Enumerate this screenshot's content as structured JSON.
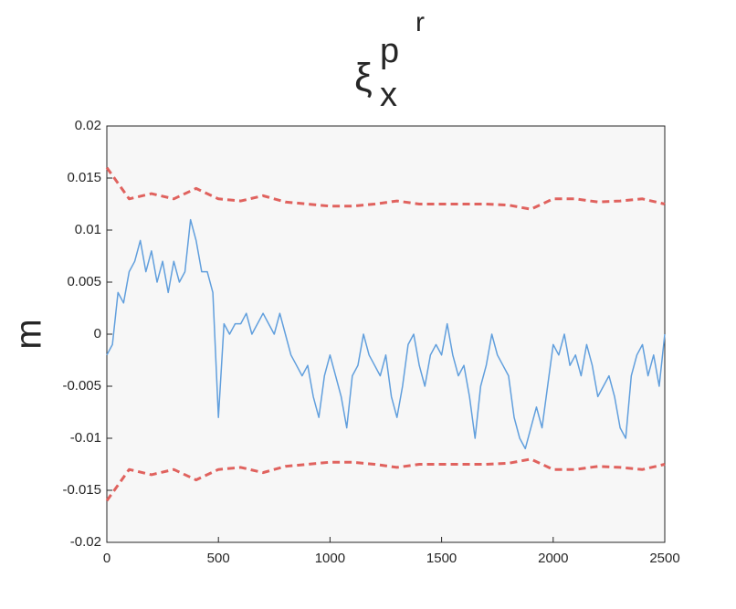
{
  "chart_data": {
    "type": "line",
    "title": {
      "symbol": "ξ",
      "subscript": "x",
      "superscript": "p",
      "superscript_superscript": "r"
    },
    "ylabel": "m",
    "xlim": [
      0,
      2500
    ],
    "xticks": [
      0,
      500,
      1000,
      1500,
      2000,
      2500
    ],
    "ylim": [
      -0.02,
      0.02
    ],
    "yticks": [
      -0.02,
      -0.015,
      -0.01,
      -0.005,
      0,
      0.005,
      0.01,
      0.015,
      0.02
    ],
    "grid": false,
    "series": [
      {
        "color": "#619fdd",
        "dashed": false,
        "x": [
          0,
          25,
          50,
          75,
          100,
          125,
          150,
          175,
          200,
          225,
          250,
          275,
          300,
          325,
          350,
          375,
          400,
          425,
          450,
          475,
          500,
          525,
          550,
          575,
          600,
          625,
          650,
          675,
          700,
          725,
          750,
          775,
          800,
          825,
          850,
          875,
          900,
          925,
          950,
          975,
          1000,
          1025,
          1050,
          1075,
          1100,
          1125,
          1150,
          1175,
          1200,
          1225,
          1250,
          1275,
          1300,
          1325,
          1350,
          1375,
          1400,
          1425,
          1450,
          1475,
          1500,
          1525,
          1550,
          1575,
          1600,
          1625,
          1650,
          1675,
          1700,
          1725,
          1750,
          1775,
          1800,
          1825,
          1850,
          1875,
          1900,
          1925,
          1950,
          1975,
          2000,
          2025,
          2050,
          2075,
          2100,
          2125,
          2150,
          2175,
          2200,
          2225,
          2250,
          2275,
          2300,
          2325,
          2350,
          2375,
          2400,
          2425,
          2450,
          2475,
          2500
        ],
        "values": [
          -0.002,
          -0.001,
          0.004,
          0.003,
          0.006,
          0.007,
          0.009,
          0.006,
          0.008,
          0.005,
          0.007,
          0.004,
          0.007,
          0.005,
          0.006,
          0.011,
          0.009,
          0.006,
          0.006,
          0.004,
          -0.008,
          0.001,
          0.0,
          0.001,
          0.001,
          0.002,
          0.0,
          0.001,
          0.002,
          0.001,
          0.0,
          0.002,
          0.0,
          -0.002,
          -0.003,
          -0.004,
          -0.003,
          -0.006,
          -0.008,
          -0.004,
          -0.002,
          -0.004,
          -0.006,
          -0.009,
          -0.004,
          -0.003,
          0.0,
          -0.002,
          -0.003,
          -0.004,
          -0.002,
          -0.006,
          -0.008,
          -0.005,
          -0.001,
          0.0,
          -0.003,
          -0.005,
          -0.002,
          -0.001,
          -0.002,
          0.001,
          -0.002,
          -0.004,
          -0.003,
          -0.006,
          -0.01,
          -0.005,
          -0.003,
          0.0,
          -0.002,
          -0.003,
          -0.004,
          -0.008,
          -0.01,
          -0.011,
          -0.009,
          -0.007,
          -0.009,
          -0.005,
          -0.001,
          -0.002,
          0.0,
          -0.003,
          -0.002,
          -0.004,
          -0.001,
          -0.003,
          -0.006,
          -0.005,
          -0.004,
          -0.006,
          -0.009,
          -0.01,
          -0.004,
          -0.002,
          -0.001,
          -0.004,
          -0.002,
          -0.005,
          0.0
        ]
      },
      {
        "color": "#e0625e",
        "dashed": true,
        "x": [
          0,
          100,
          200,
          300,
          400,
          500,
          600,
          700,
          800,
          900,
          1000,
          1100,
          1200,
          1300,
          1400,
          1500,
          1600,
          1700,
          1800,
          1900,
          2000,
          2100,
          2200,
          2300,
          2400,
          2500
        ],
        "values": [
          0.016,
          0.013,
          0.0135,
          0.013,
          0.014,
          0.013,
          0.0128,
          0.0133,
          0.0127,
          0.0125,
          0.0123,
          0.0123,
          0.0125,
          0.0128,
          0.0125,
          0.0125,
          0.0125,
          0.0125,
          0.0124,
          0.012,
          0.013,
          0.013,
          0.0127,
          0.0128,
          0.013,
          0.0125
        ]
      },
      {
        "color": "#e0625e",
        "dashed": true,
        "x": [
          0,
          100,
          200,
          300,
          400,
          500,
          600,
          700,
          800,
          900,
          1000,
          1100,
          1200,
          1300,
          1400,
          1500,
          1600,
          1700,
          1800,
          1900,
          2000,
          2100,
          2200,
          2300,
          2400,
          2500
        ],
        "values": [
          -0.016,
          -0.013,
          -0.0135,
          -0.013,
          -0.014,
          -0.013,
          -0.0128,
          -0.0133,
          -0.0127,
          -0.0125,
          -0.0123,
          -0.0123,
          -0.0125,
          -0.0128,
          -0.0125,
          -0.0125,
          -0.0125,
          -0.0125,
          -0.0124,
          -0.012,
          -0.013,
          -0.013,
          -0.0127,
          -0.0128,
          -0.013,
          -0.0125
        ]
      }
    ]
  }
}
